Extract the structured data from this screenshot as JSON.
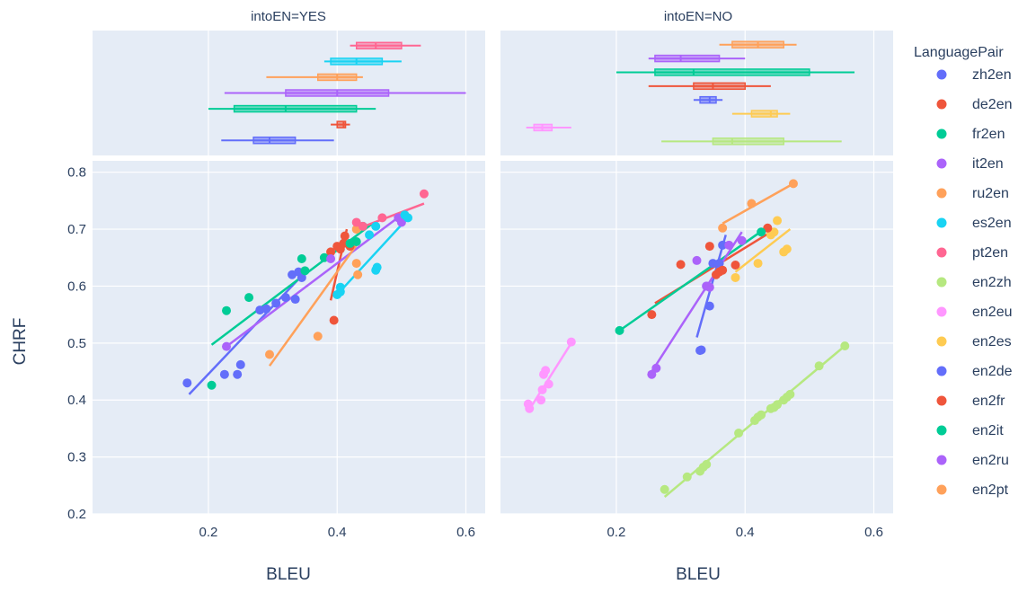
{
  "chart_data": {
    "type": "scatter",
    "facets": [
      {
        "name": "YES",
        "title": "intoEN=YES"
      },
      {
        "name": "NO",
        "title": "intoEN=NO"
      }
    ],
    "xlabel": "BLEU",
    "ylabel": "CHRF",
    "xlim": [
      0.02,
      0.63
    ],
    "ylim": [
      0.2,
      0.82
    ],
    "xticks": [
      "0.2",
      "0.4",
      "0.6"
    ],
    "yticks": [
      "0.2",
      "0.3",
      "0.4",
      "0.5",
      "0.6",
      "0.7",
      "0.8"
    ],
    "xtick_values": [
      0.2,
      0.4,
      0.6
    ],
    "ytick_values": [
      0.2,
      0.3,
      0.4,
      0.5,
      0.6,
      0.7,
      0.8
    ],
    "legend": {
      "title": "LanguagePair",
      "position": "right"
    },
    "grid": true,
    "marginal": "box plot of BLEU per LanguagePair, above each facet",
    "series": [
      {
        "name": "zh2en",
        "color": "#636efa",
        "facet": "YES",
        "points": [
          [
            0.167,
            0.43
          ],
          [
            0.225,
            0.445
          ],
          [
            0.245,
            0.445
          ],
          [
            0.25,
            0.462
          ],
          [
            0.28,
            0.558
          ],
          [
            0.29,
            0.56
          ],
          [
            0.305,
            0.57
          ],
          [
            0.32,
            0.58
          ],
          [
            0.33,
            0.62
          ],
          [
            0.335,
            0.577
          ],
          [
            0.345,
            0.615
          ],
          [
            0.34,
            0.625
          ]
        ],
        "trend": [
          [
            0.17,
            0.41
          ],
          [
            0.355,
            0.63
          ]
        ],
        "box": [
          0.22,
          0.27,
          0.295,
          0.335,
          0.395
        ]
      },
      {
        "name": "de2en",
        "color": "#ef553b",
        "facet": "YES",
        "points": [
          [
            0.395,
            0.54
          ],
          [
            0.39,
            0.66
          ],
          [
            0.4,
            0.67
          ],
          [
            0.405,
            0.665
          ],
          [
            0.41,
            0.675
          ],
          [
            0.412,
            0.688
          ],
          [
            0.42,
            0.67
          ]
        ],
        "trend": [
          [
            0.39,
            0.575
          ],
          [
            0.415,
            0.7
          ]
        ],
        "box": [
          0.39,
          0.4,
          0.41,
          0.413,
          0.42
        ]
      },
      {
        "name": "fr2en",
        "color": "#00cc96",
        "facet": "YES",
        "points": [
          [
            0.205,
            0.426
          ],
          [
            0.228,
            0.557
          ],
          [
            0.263,
            0.58
          ],
          [
            0.345,
            0.648
          ],
          [
            0.35,
            0.627
          ],
          [
            0.38,
            0.65
          ],
          [
            0.42,
            0.675
          ],
          [
            0.43,
            0.678
          ],
          [
            0.44,
            0.705
          ]
        ],
        "trend": [
          [
            0.205,
            0.497
          ],
          [
            0.455,
            0.71
          ]
        ],
        "box": [
          0.2,
          0.24,
          0.32,
          0.43,
          0.46
        ]
      },
      {
        "name": "it2en",
        "color": "#ab63fa",
        "facet": "YES",
        "points": [
          [
            0.228,
            0.494
          ],
          [
            0.39,
            0.648
          ],
          [
            0.495,
            0.72
          ],
          [
            0.5,
            0.712
          ]
        ],
        "trend": [
          [
            0.228,
            0.494
          ],
          [
            0.5,
            0.725
          ]
        ],
        "box": [
          0.225,
          0.32,
          0.4,
          0.48,
          0.6
        ]
      },
      {
        "name": "ru2en",
        "color": "#ffa15a",
        "facet": "YES",
        "points": [
          [
            0.295,
            0.48
          ],
          [
            0.37,
            0.512
          ],
          [
            0.43,
            0.64
          ],
          [
            0.432,
            0.62
          ],
          [
            0.43,
            0.7
          ]
        ],
        "trend": [
          [
            0.295,
            0.46
          ],
          [
            0.435,
            0.68
          ]
        ],
        "box": [
          0.29,
          0.37,
          0.4,
          0.43,
          0.44
        ]
      },
      {
        "name": "es2en",
        "color": "#19d3f3",
        "facet": "YES",
        "points": [
          [
            0.4,
            0.585
          ],
          [
            0.405,
            0.59
          ],
          [
            0.405,
            0.598
          ],
          [
            0.46,
            0.628
          ],
          [
            0.462,
            0.633
          ],
          [
            0.45,
            0.69
          ],
          [
            0.46,
            0.705
          ],
          [
            0.505,
            0.725
          ],
          [
            0.51,
            0.72
          ]
        ],
        "trend": [
          [
            0.4,
            0.585
          ],
          [
            0.51,
            0.72
          ]
        ],
        "box": [
          0.38,
          0.39,
          0.43,
          0.47,
          0.5
        ]
      },
      {
        "name": "pt2en",
        "color": "#ff6692",
        "facet": "YES",
        "points": [
          [
            0.43,
            0.712
          ],
          [
            0.44,
            0.705
          ],
          [
            0.47,
            0.72
          ],
          [
            0.535,
            0.762
          ]
        ],
        "trend": [
          [
            0.43,
            0.7
          ],
          [
            0.535,
            0.745
          ]
        ],
        "box": [
          0.42,
          0.43,
          0.46,
          0.5,
          0.53
        ]
      },
      {
        "name": "en2zh",
        "color": "#b6e880",
        "facet": "NO",
        "points": [
          [
            0.275,
            0.243
          ],
          [
            0.31,
            0.265
          ],
          [
            0.33,
            0.275
          ],
          [
            0.335,
            0.282
          ],
          [
            0.34,
            0.287
          ],
          [
            0.39,
            0.342
          ],
          [
            0.415,
            0.364
          ],
          [
            0.42,
            0.37
          ],
          [
            0.425,
            0.374
          ],
          [
            0.44,
            0.385
          ],
          [
            0.445,
            0.387
          ],
          [
            0.45,
            0.392
          ],
          [
            0.46,
            0.4
          ],
          [
            0.465,
            0.405
          ],
          [
            0.47,
            0.41
          ],
          [
            0.515,
            0.46
          ],
          [
            0.555,
            0.495
          ]
        ],
        "trend": [
          [
            0.275,
            0.23
          ],
          [
            0.555,
            0.495
          ]
        ],
        "box": [
          0.27,
          0.35,
          0.38,
          0.46,
          0.55
        ]
      },
      {
        "name": "en2eu",
        "color": "#ff97ff",
        "facet": "NO",
        "points": [
          [
            0.063,
            0.393
          ],
          [
            0.065,
            0.385
          ],
          [
            0.083,
            0.4
          ],
          [
            0.085,
            0.418
          ],
          [
            0.087,
            0.445
          ],
          [
            0.09,
            0.452
          ],
          [
            0.095,
            0.428
          ],
          [
            0.13,
            0.502
          ]
        ],
        "trend": [
          [
            0.063,
            0.38
          ],
          [
            0.13,
            0.5
          ]
        ],
        "box": [
          0.06,
          0.072,
          0.085,
          0.1,
          0.13
        ]
      },
      {
        "name": "en2es",
        "color": "#fecb52",
        "facet": "NO",
        "points": [
          [
            0.385,
            0.615
          ],
          [
            0.42,
            0.64
          ],
          [
            0.44,
            0.69
          ],
          [
            0.445,
            0.695
          ],
          [
            0.45,
            0.715
          ],
          [
            0.46,
            0.66
          ],
          [
            0.465,
            0.665
          ]
        ],
        "trend": [
          [
            0.385,
            0.625
          ],
          [
            0.47,
            0.7
          ]
        ],
        "box": [
          0.38,
          0.41,
          0.44,
          0.45,
          0.47
        ]
      },
      {
        "name": "en2de",
        "color": "#636efa",
        "facet": "NO",
        "points": [
          [
            0.33,
            0.487
          ],
          [
            0.332,
            0.488
          ],
          [
            0.34,
            0.6
          ],
          [
            0.345,
            0.565
          ],
          [
            0.35,
            0.64
          ],
          [
            0.36,
            0.64
          ],
          [
            0.365,
            0.672
          ]
        ],
        "trend": [
          [
            0.325,
            0.51
          ],
          [
            0.37,
            0.69
          ]
        ],
        "box": [
          0.32,
          0.33,
          0.345,
          0.355,
          0.365
        ]
      },
      {
        "name": "en2fr",
        "color": "#ef553b",
        "facet": "NO",
        "points": [
          [
            0.255,
            0.55
          ],
          [
            0.3,
            0.638
          ],
          [
            0.345,
            0.67
          ],
          [
            0.355,
            0.62
          ],
          [
            0.36,
            0.625
          ],
          [
            0.365,
            0.628
          ],
          [
            0.385,
            0.637
          ],
          [
            0.435,
            0.702
          ]
        ],
        "trend": [
          [
            0.26,
            0.57
          ],
          [
            0.44,
            0.695
          ]
        ],
        "box": [
          0.25,
          0.32,
          0.35,
          0.4,
          0.44
        ]
      },
      {
        "name": "en2it",
        "color": "#00cc96",
        "facet": "NO",
        "points": [
          [
            0.205,
            0.522
          ],
          [
            0.425,
            0.695
          ]
        ],
        "trend": [
          [
            0.205,
            0.522
          ],
          [
            0.43,
            0.7
          ]
        ],
        "box": [
          0.2,
          0.26,
          0.32,
          0.5,
          0.57
        ]
      },
      {
        "name": "en2ru",
        "color": "#ab63fa",
        "facet": "NO",
        "points": [
          [
            0.255,
            0.445
          ],
          [
            0.262,
            0.456
          ],
          [
            0.325,
            0.645
          ],
          [
            0.34,
            0.6
          ],
          [
            0.345,
            0.598
          ],
          [
            0.375,
            0.672
          ],
          [
            0.395,
            0.68
          ]
        ],
        "trend": [
          [
            0.255,
            0.45
          ],
          [
            0.395,
            0.695
          ]
        ],
        "box": [
          0.25,
          0.26,
          0.3,
          0.36,
          0.4
        ]
      },
      {
        "name": "en2pt",
        "color": "#ffa15a",
        "facet": "NO",
        "points": [
          [
            0.365,
            0.702
          ],
          [
            0.41,
            0.745
          ],
          [
            0.475,
            0.78
          ]
        ],
        "trend": [
          [
            0.365,
            0.71
          ],
          [
            0.475,
            0.78
          ]
        ],
        "box": [
          0.36,
          0.38,
          0.42,
          0.46,
          0.48
        ]
      }
    ]
  }
}
